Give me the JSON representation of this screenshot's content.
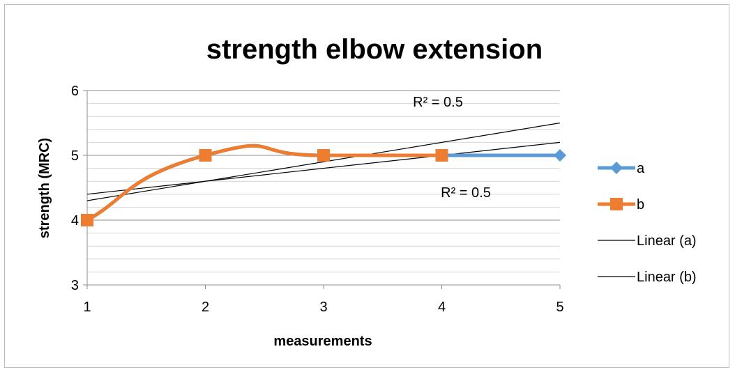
{
  "chart_data": {
    "type": "line",
    "title": "strength elbow extension",
    "xlabel": "measurements",
    "ylabel": "strength (MRC)",
    "x_ticks": [
      "1",
      "2",
      "3",
      "4",
      "5"
    ],
    "y_ticks": [
      "3",
      "4",
      "5",
      "6"
    ],
    "xlim": [
      1,
      5
    ],
    "ylim": [
      3,
      6
    ],
    "grid": "horizontal major and minor",
    "legend_position": "right",
    "series": [
      {
        "name": "a",
        "x": [
          1,
          2,
          3,
          4,
          5
        ],
        "y": [
          4,
          5,
          5,
          5,
          5
        ],
        "color": "#5b9bd5",
        "marker": "diamond",
        "smooth": true
      },
      {
        "name": "b",
        "x": [
          1,
          2,
          3,
          4
        ],
        "y": [
          4,
          5,
          5,
          5
        ],
        "color": "#ed7d31",
        "marker": "square",
        "smooth": true
      }
    ],
    "trendlines": [
      {
        "name": "Linear (a)",
        "type": "linear",
        "slope": 0.2,
        "intercept": 4.2,
        "r_squared_label": "R² = 0.5",
        "color": "#000000"
      },
      {
        "name": "Linear (b)",
        "type": "linear",
        "slope": 0.3,
        "intercept": 4.0,
        "r_squared_label": "R² = 0.5",
        "color": "#000000"
      }
    ]
  }
}
